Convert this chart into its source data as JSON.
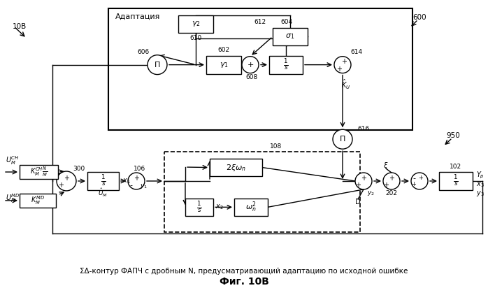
{
  "title": "Фиг. 10В",
  "subtitle": "ΣΔ-контур ФАПЧ с дробным N, предусматривающий адаптацию по исходной ошибке",
  "adapt_label": "Адаптация",
  "bg_color": "#ffffff",
  "box_color": "#000000",
  "label_10B": "10В",
  "label_600": "600",
  "label_950": "950",
  "label_300": "300",
  "label_106": "106",
  "label_108": "108",
  "label_102": "102",
  "label_606": "606",
  "label_602": "602",
  "label_610": "610",
  "label_612": "612",
  "label_604": "604",
  "label_614": "614",
  "label_608": "608",
  "label_616": "616",
  "label_202": "202"
}
